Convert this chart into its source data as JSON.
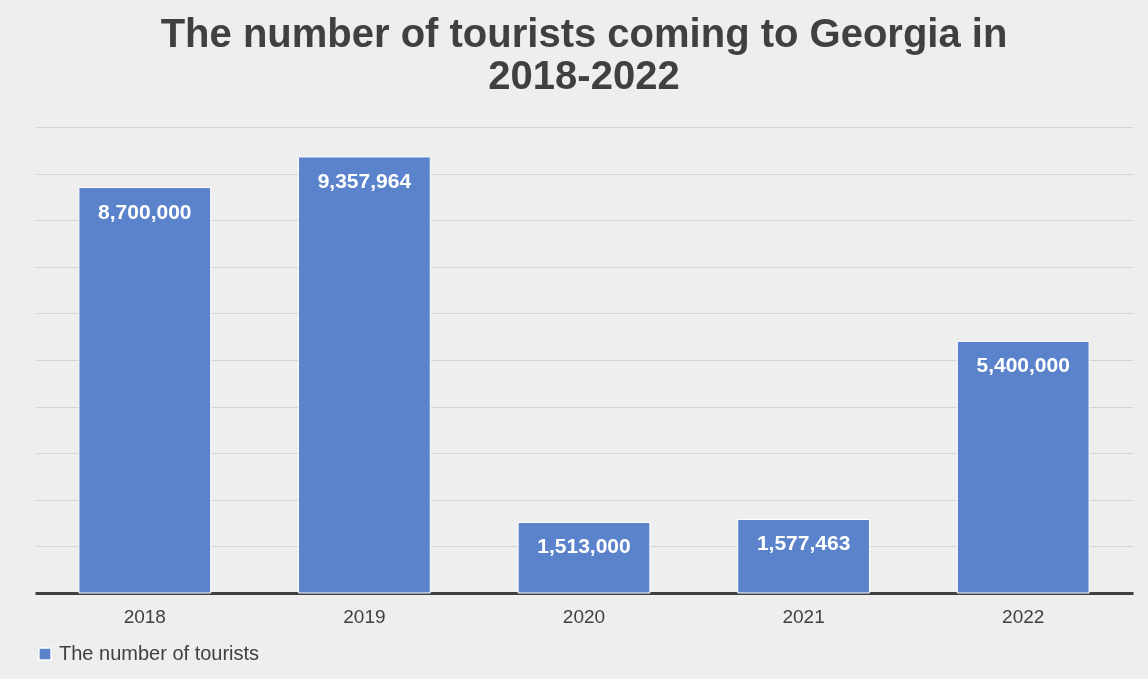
{
  "chart_data": {
    "type": "bar",
    "title": "The number of tourists coming to Georgia in 2018-2022",
    "categories": [
      "2018",
      "2019",
      "2020",
      "2021",
      "2022"
    ],
    "series": [
      {
        "name": "The number of tourists",
        "color": "#5b83cc",
        "values": [
          8700000,
          9357964,
          1513000,
          1577463,
          5400000
        ],
        "value_labels": [
          "8,700,000",
          "9,357,964",
          "1,513,000",
          "1,577,463",
          "5,400,000"
        ]
      }
    ],
    "tick_labels": "x",
    "grid": "y",
    "legend": "bottom"
  }
}
